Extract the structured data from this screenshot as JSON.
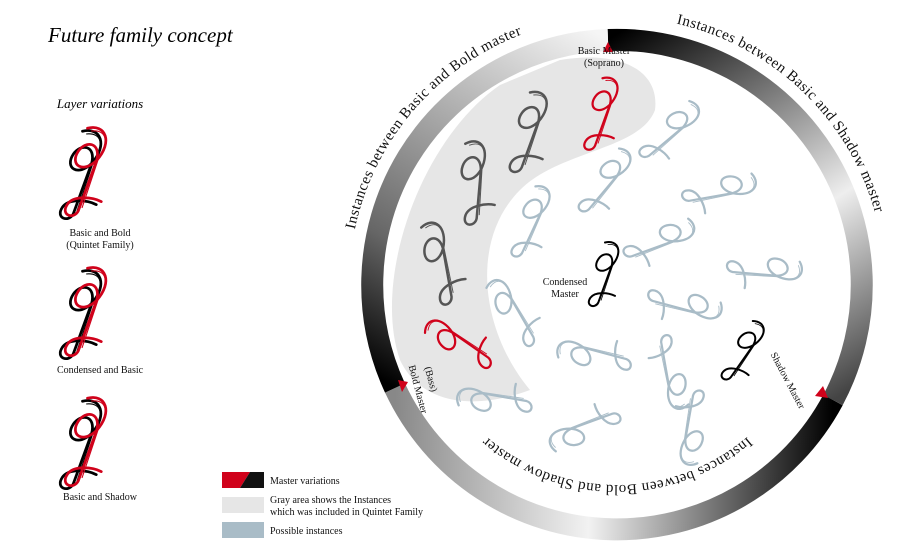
{
  "title": "Future family concept",
  "layers": {
    "heading": "Layer variations",
    "items": [
      {
        "lines": [
          "Basic and Bold",
          "(Quintet Family)"
        ]
      },
      {
        "lines": [
          "Condensed and Basic"
        ]
      },
      {
        "lines": [
          "Basic and Shadow"
        ]
      }
    ]
  },
  "ring": {
    "basic_bold": "Instances between Basic and Bold master",
    "basic_shadow": "Instances between Basic and Shadow master",
    "bold_shadow": "Instances between Bold and Shadow master"
  },
  "masters": {
    "basic": [
      "Basic Master",
      "(Soprano)"
    ],
    "condensed": [
      "Condensed",
      "Master"
    ],
    "shadow": "Shadow Master",
    "bold": [
      "Bold Master",
      "(Bass)"
    ]
  },
  "legend": [
    {
      "lines": [
        "Master variations"
      ]
    },
    {
      "lines": [
        "Gray area shows the Instances",
        "which was included in Quintet Family"
      ]
    },
    {
      "lines": [
        "Possible instances"
      ]
    }
  ]
}
